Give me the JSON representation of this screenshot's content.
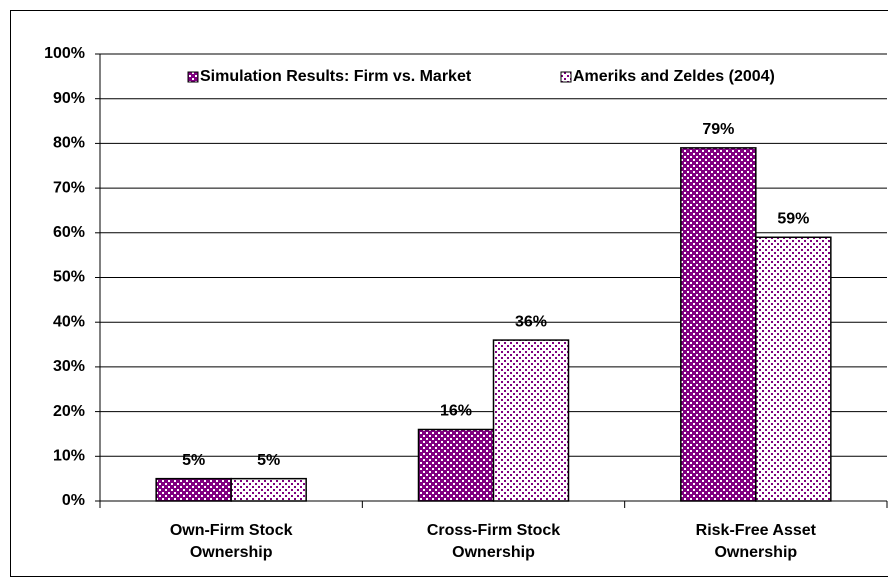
{
  "chart_data": {
    "type": "bar",
    "categories": [
      "Own-Firm Stock\nOwnership",
      "Cross-Firm Stock\nOwnership",
      "Risk-Free Asset\nOwnership"
    ],
    "series": [
      {
        "name": "Simulation Results: Firm vs. Market",
        "color": "#800080",
        "values": [
          5,
          16,
          79
        ],
        "value_labels": [
          "5%",
          "16%",
          "79%"
        ]
      },
      {
        "name": "Ameriks and Zeldes (2004)",
        "color": "#800080",
        "values": [
          5,
          36,
          59
        ],
        "value_labels": [
          "5%",
          "36%",
          "59%"
        ]
      }
    ],
    "ylim": [
      0,
      100
    ],
    "yticks": [
      {
        "value": 0,
        "label": "0%"
      },
      {
        "value": 10,
        "label": "10%"
      },
      {
        "value": 20,
        "label": "20%"
      },
      {
        "value": 30,
        "label": "30%"
      },
      {
        "value": 40,
        "label": "40%"
      },
      {
        "value": 50,
        "label": "50%"
      },
      {
        "value": 60,
        "label": "60%"
      },
      {
        "value": 70,
        "label": "70%"
      },
      {
        "value": 80,
        "label": "80%"
      },
      {
        "value": 90,
        "label": "90%"
      },
      {
        "value": 100,
        "label": "100%"
      }
    ],
    "grid": true,
    "legend": "top"
  }
}
